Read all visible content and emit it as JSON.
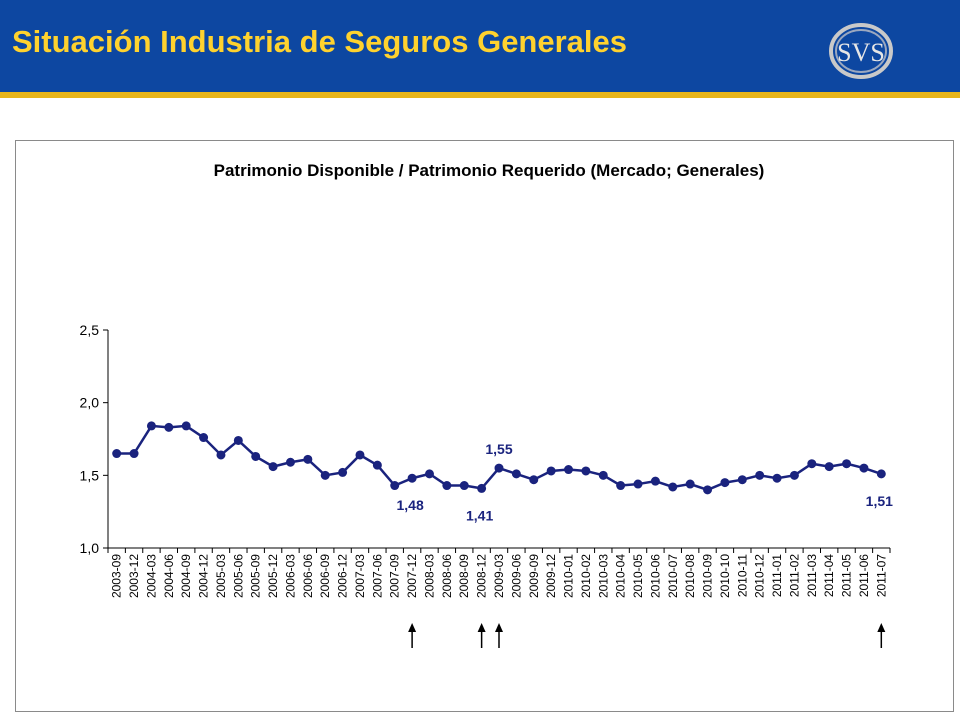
{
  "header": {
    "title": "Situación Industria de Seguros Generales",
    "logo_text": "SVS"
  },
  "colors": {
    "header_bg": "#0d47a1",
    "header_accent": "#e8b51a",
    "title_text": "#ffd22e",
    "series": "#1a237e"
  },
  "chart_data": {
    "type": "line",
    "title": "Patrimonio Disponible / Patrimonio Requerido (Mercado; Generales)",
    "xlabel": "",
    "ylabel": "",
    "ylim": [
      1.0,
      2.5
    ],
    "yticks": [
      "1,0",
      "1,5",
      "2,0",
      "2,5"
    ],
    "ytick_values": [
      1.0,
      1.5,
      2.0,
      2.5
    ],
    "grid": false,
    "legend": "none",
    "categories": [
      "2003-09",
      "2003-12",
      "2004-03",
      "2004-06",
      "2004-09",
      "2004-12",
      "2005-03",
      "2005-06",
      "2005-09",
      "2005-12",
      "2006-03",
      "2006-06",
      "2006-09",
      "2006-12",
      "2007-03",
      "2007-06",
      "2007-09",
      "2007-12",
      "2008-03",
      "2008-06",
      "2008-09",
      "2008-12",
      "2009-03",
      "2009-06",
      "2009-09",
      "2009-12",
      "2010-01",
      "2010-02",
      "2010-03",
      "2010-04",
      "2010-05",
      "2010-06",
      "2010-07",
      "2010-08",
      "2010-09",
      "2010-10",
      "2010-11",
      "2010-12",
      "2011-01",
      "2011-02",
      "2011-03",
      "2011-04",
      "2011-05",
      "2011-06",
      "2011-07"
    ],
    "series": [
      {
        "values": [
          1.65,
          1.65,
          1.84,
          1.83,
          1.84,
          1.76,
          1.64,
          1.74,
          1.63,
          1.56,
          1.59,
          1.61,
          1.5,
          1.52,
          1.64,
          1.57,
          1.43,
          1.48,
          1.51,
          1.43,
          1.43,
          1.41,
          1.55,
          1.51,
          1.47,
          1.53,
          1.54,
          1.53,
          1.5,
          1.43,
          1.44,
          1.46,
          1.42,
          1.44,
          1.4,
          1.45,
          1.47,
          1.5,
          1.48,
          1.5,
          1.58,
          1.56,
          1.58,
          1.55,
          1.51
        ]
      }
    ],
    "annotations": [
      {
        "category": "2007-12",
        "label": "1,48",
        "position": "below"
      },
      {
        "category": "2008-12",
        "label": "1,41",
        "position": "below"
      },
      {
        "category": "2009-03",
        "label": "1,55",
        "position": "above"
      },
      {
        "category": "2011-07",
        "label": "1,51",
        "position": "below"
      }
    ],
    "arrows_at": [
      "2007-12",
      "2008-12",
      "2009-03",
      "2011-07"
    ]
  }
}
